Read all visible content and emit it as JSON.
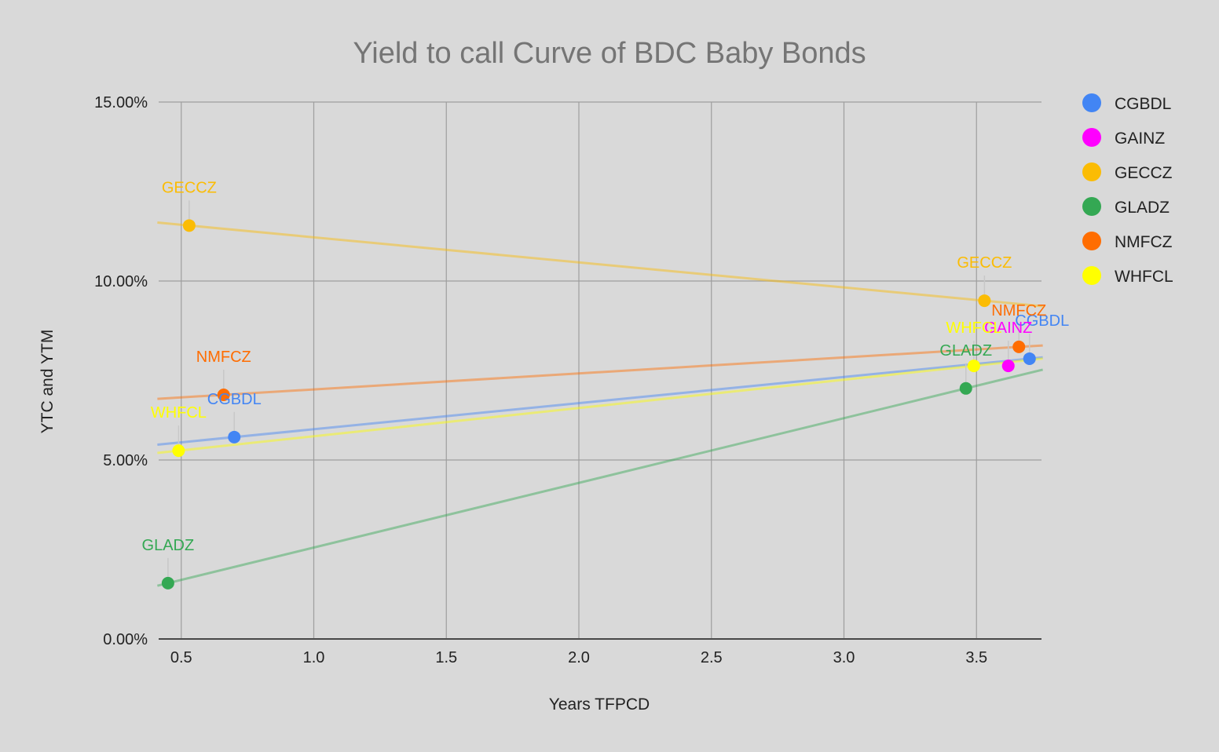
{
  "chart_data": {
    "type": "scatter",
    "title": "Yield to call Curve of BDC Baby Bonds",
    "xlabel": "Years TFPCD",
    "ylabel": "YTC and YTM",
    "xlim": [
      0.41,
      3.75
    ],
    "ylim": [
      0,
      15
    ],
    "x_ticks": [
      "0.5",
      "1.0",
      "1.5",
      "2.0",
      "2.5",
      "3.0",
      "3.5"
    ],
    "y_ticks": [
      "0.00%",
      "5.00%",
      "10.00%",
      "15.00%"
    ],
    "grid": true,
    "legend_position": "right",
    "trendlines": true,
    "series": [
      {
        "name": "CGBDL",
        "color": "#4285f4",
        "points": [
          {
            "x": 0.7,
            "y": 5.64
          },
          {
            "x": 3.7,
            "y": 7.83
          }
        ]
      },
      {
        "name": "GAINZ",
        "color": "#ff00ff",
        "points": [
          {
            "x": 3.62,
            "y": 7.63
          }
        ]
      },
      {
        "name": "GECCZ",
        "color": "#fbbc04",
        "points": [
          {
            "x": 0.53,
            "y": 11.55
          },
          {
            "x": 3.53,
            "y": 9.45
          }
        ]
      },
      {
        "name": "GLADZ",
        "color": "#34a853",
        "points": [
          {
            "x": 0.45,
            "y": 1.56
          },
          {
            "x": 3.46,
            "y": 7.0
          }
        ]
      },
      {
        "name": "NMFCZ",
        "color": "#ff6d01",
        "points": [
          {
            "x": 0.66,
            "y": 6.82
          },
          {
            "x": 3.66,
            "y": 8.16
          }
        ]
      },
      {
        "name": "WHFCL",
        "color": "#ffff00",
        "points": [
          {
            "x": 0.49,
            "y": 5.26
          },
          {
            "x": 3.49,
            "y": 7.63
          }
        ]
      }
    ]
  }
}
